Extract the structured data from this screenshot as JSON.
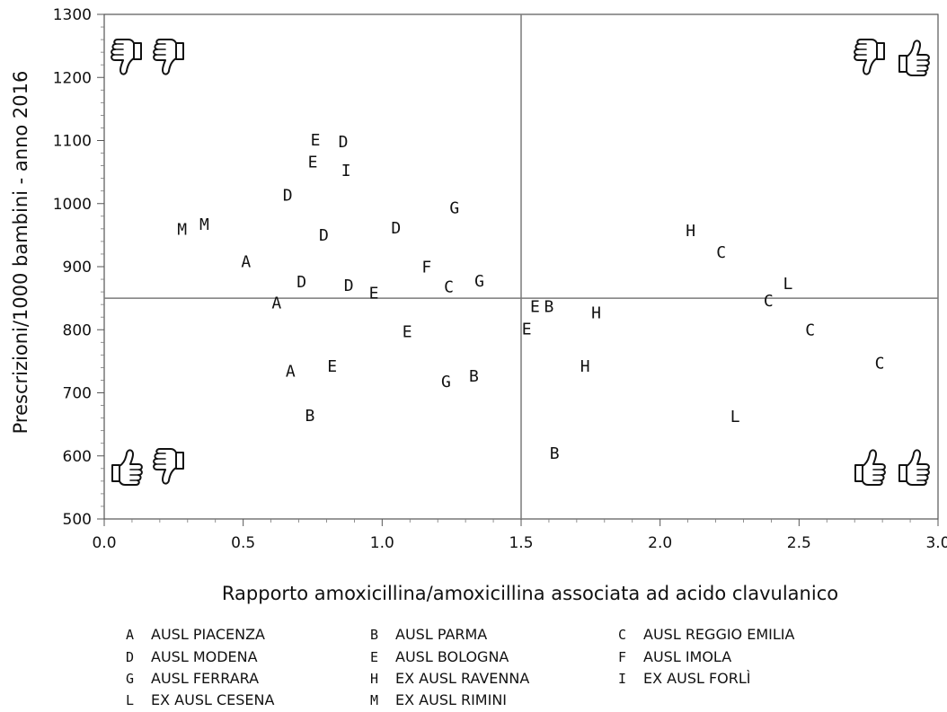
{
  "chart_data": {
    "type": "scatter",
    "xlabel": "Rapporto amoxicillina/amoxicillina associata ad acido clavulanico",
    "ylabel": "Prescrizioni/1000 bambini - anno 2016",
    "xlim": [
      0,
      3.0
    ],
    "ylim": [
      500,
      1300
    ],
    "x_ticks": [
      "0.0",
      "0.5",
      "1.0",
      "1.5",
      "2.0",
      "2.5",
      "3.0"
    ],
    "y_ticks": [
      "500",
      "600",
      "700",
      "800",
      "900",
      "1000",
      "1100",
      "1200",
      "1300"
    ],
    "reference_lines": {
      "x": 1.5,
      "y": 850
    },
    "grid": false,
    "legend_placement": "bottom",
    "legend": [
      {
        "code": "A",
        "name": "AUSL PIACENZA"
      },
      {
        "code": "B",
        "name": "AUSL PARMA"
      },
      {
        "code": "C",
        "name": "AUSL REGGIO EMILIA"
      },
      {
        "code": "D",
        "name": "AUSL MODENA"
      },
      {
        "code": "E",
        "name": "AUSL BOLOGNA"
      },
      {
        "code": "F",
        "name": "AUSL IMOLA"
      },
      {
        "code": "G",
        "name": "AUSL FERRARA"
      },
      {
        "code": "H",
        "name": "EX AUSL RAVENNA"
      },
      {
        "code": "I",
        "name": "EX AUSL FORLÌ"
      },
      {
        "code": "L",
        "name": "EX AUSL CESENA"
      },
      {
        "code": "M",
        "name": "EX AUSL RIMINI"
      }
    ],
    "points": [
      {
        "label": "A",
        "x": 0.51,
        "y": 908
      },
      {
        "label": "A",
        "x": 0.62,
        "y": 842
      },
      {
        "label": "A",
        "x": 0.67,
        "y": 734
      },
      {
        "label": "B",
        "x": 0.74,
        "y": 664
      },
      {
        "label": "B",
        "x": 1.33,
        "y": 726
      },
      {
        "label": "B",
        "x": 1.6,
        "y": 837
      },
      {
        "label": "B",
        "x": 1.62,
        "y": 604
      },
      {
        "label": "C",
        "x": 1.24,
        "y": 868
      },
      {
        "label": "C",
        "x": 2.22,
        "y": 923
      },
      {
        "label": "C",
        "x": 2.39,
        "y": 846
      },
      {
        "label": "C",
        "x": 2.54,
        "y": 800
      },
      {
        "label": "C",
        "x": 2.79,
        "y": 747
      },
      {
        "label": "D",
        "x": 0.66,
        "y": 1013
      },
      {
        "label": "D",
        "x": 0.71,
        "y": 876
      },
      {
        "label": "D",
        "x": 0.79,
        "y": 950
      },
      {
        "label": "D",
        "x": 0.86,
        "y": 1098
      },
      {
        "label": "D",
        "x": 0.88,
        "y": 870
      },
      {
        "label": "D",
        "x": 1.05,
        "y": 961
      },
      {
        "label": "E",
        "x": 0.75,
        "y": 1066
      },
      {
        "label": "E",
        "x": 0.76,
        "y": 1101
      },
      {
        "label": "E",
        "x": 0.82,
        "y": 742
      },
      {
        "label": "E",
        "x": 0.97,
        "y": 858
      },
      {
        "label": "E",
        "x": 1.09,
        "y": 797
      },
      {
        "label": "E",
        "x": 1.52,
        "y": 801
      },
      {
        "label": "E",
        "x": 1.55,
        "y": 837
      },
      {
        "label": "F",
        "x": 1.16,
        "y": 899
      },
      {
        "label": "G",
        "x": 1.23,
        "y": 718
      },
      {
        "label": "G",
        "x": 1.26,
        "y": 993
      },
      {
        "label": "G",
        "x": 1.35,
        "y": 877
      },
      {
        "label": "H",
        "x": 1.73,
        "y": 742
      },
      {
        "label": "H",
        "x": 1.77,
        "y": 827
      },
      {
        "label": "H",
        "x": 2.11,
        "y": 957
      },
      {
        "label": "I",
        "x": 0.87,
        "y": 1052
      },
      {
        "label": "L",
        "x": 2.27,
        "y": 662
      },
      {
        "label": "L",
        "x": 2.46,
        "y": 873
      },
      {
        "label": "M",
        "x": 0.28,
        "y": 959
      },
      {
        "label": "M",
        "x": 0.36,
        "y": 967
      }
    ],
    "quadrant_icons": {
      "top_left": [
        "thumb-down-icon",
        "thumb-down-icon"
      ],
      "top_right": [
        "thumb-down-icon",
        "thumb-up-icon"
      ],
      "bottom_left": [
        "thumb-up-icon",
        "thumb-down-icon"
      ],
      "bottom_right": [
        "thumb-up-icon",
        "thumb-up-icon"
      ]
    }
  }
}
